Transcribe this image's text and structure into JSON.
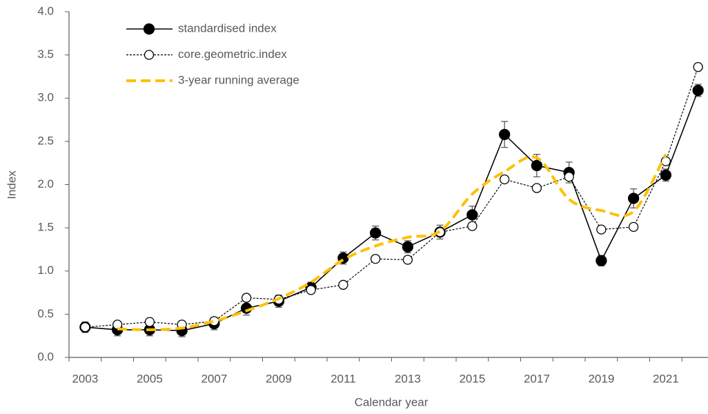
{
  "chart_data": {
    "type": "line",
    "x_label": "Calendar year",
    "y_label": "Index",
    "categories": [
      "2003",
      null,
      "2005",
      null,
      "2007",
      null,
      "2009",
      null,
      "2011",
      null,
      "2013",
      null,
      "2015",
      null,
      "2017",
      null,
      "2019",
      null,
      "2021",
      null
    ],
    "series": [
      {
        "name": "standardised index",
        "color": "#000000",
        "style": "solid",
        "marker": "filled",
        "values": [
          0.35,
          0.32,
          0.32,
          0.31,
          0.39,
          0.57,
          0.65,
          0.81,
          1.15,
          1.44,
          1.28,
          1.45,
          1.65,
          2.58,
          2.22,
          2.14,
          1.12,
          1.84,
          2.11,
          3.09
        ],
        "errors": [
          0.06,
          0.07,
          0.07,
          0.07,
          0.07,
          0.08,
          0.07,
          0.06,
          0.07,
          0.08,
          0.07,
          0.08,
          0.1,
          0.15,
          0.13,
          0.12,
          0.06,
          0.11,
          0.07,
          0.07
        ]
      },
      {
        "name": "core.geometric.index",
        "color": "#000000",
        "style": "dotted",
        "marker": "open",
        "values": [
          0.35,
          0.38,
          0.41,
          0.38,
          0.42,
          0.69,
          0.67,
          0.78,
          0.84,
          1.14,
          1.13,
          1.45,
          1.52,
          2.06,
          1.96,
          2.09,
          1.48,
          1.51,
          2.27,
          3.36
        ]
      },
      {
        "name": "3-year running average",
        "color": "#FFC000",
        "style": "dashed",
        "marker": "none",
        "values": [
          null,
          0.33,
          0.32,
          0.34,
          0.42,
          0.54,
          0.68,
          0.87,
          1.13,
          1.29,
          1.39,
          1.46,
          1.89,
          2.15,
          2.31,
          1.83,
          1.7,
          1.69,
          2.35,
          null
        ]
      }
    ],
    "ylim": [
      0,
      4
    ],
    "yticks": [
      {
        "value": 0,
        "label": "0.0"
      },
      0.5,
      {
        "value": 1,
        "label": "1.0"
      },
      1.5,
      {
        "value": 2,
        "label": "2.0"
      },
      2.5,
      {
        "value": 3,
        "label": "3.0"
      },
      3.5,
      {
        "value": 4,
        "label": "4.0"
      }
    ],
    "grid": false,
    "legend": "upper left"
  }
}
